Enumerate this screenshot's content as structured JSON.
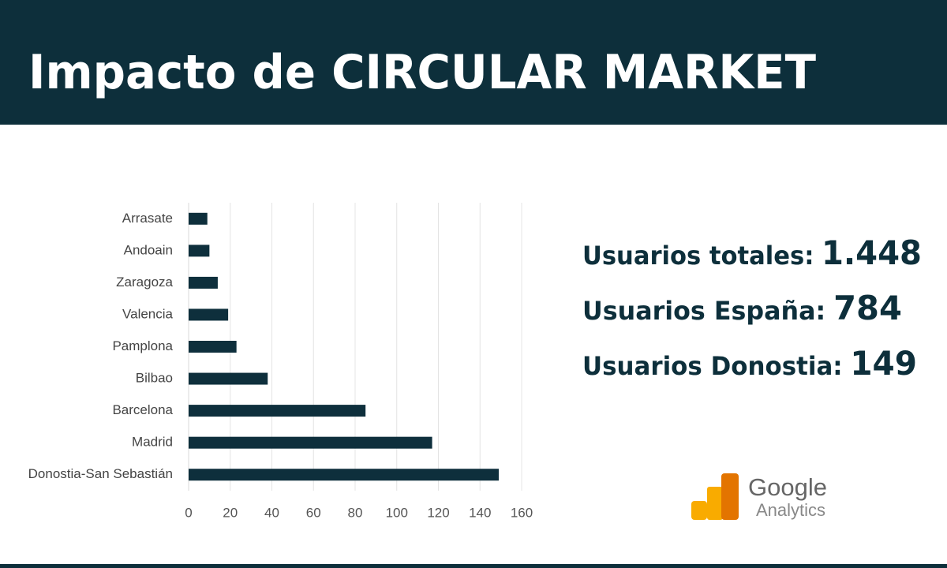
{
  "header": {
    "title": "Impacto de CIRCULAR MARKET"
  },
  "chart_data": {
    "type": "bar",
    "orientation": "horizontal",
    "categories": [
      "Arrasate",
      "Andoain",
      "Zaragoza",
      "Valencia",
      "Pamplona",
      "Bilbao",
      "Barcelona",
      "Madrid",
      "Donostia-San Sebastián"
    ],
    "values": [
      9,
      10,
      14,
      19,
      23,
      38,
      85,
      117,
      149
    ],
    "color": "#0e2f3c",
    "xlim": [
      0,
      160
    ],
    "xticks": [
      0,
      20,
      40,
      60,
      80,
      100,
      120,
      140,
      160
    ],
    "grid": true
  },
  "stats": [
    {
      "label": "Usuarios totales:",
      "value": "1.448"
    },
    {
      "label": "Usuarios España:",
      "value": "784"
    },
    {
      "label": "Usuarios Donostia:",
      "value": "149"
    }
  ],
  "logo": {
    "brand": "Google",
    "product": "Analytics"
  }
}
